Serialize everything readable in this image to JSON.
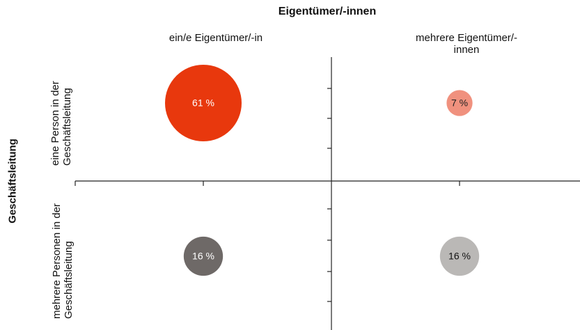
{
  "chart_data": {
    "type": "bubble-matrix",
    "title": "Eigentümer/-innen",
    "y_title": "Geschäftsleitung",
    "x_categories": [
      "ein/e Eigentümer/-in",
      "mehrere Eigentümer/-innen"
    ],
    "y_categories": [
      "eine Person in der Geschäftsleitung",
      "mehrere Personen in der Geschäftsleitung"
    ],
    "values": [
      [
        61,
        7
      ],
      [
        16,
        16
      ]
    ],
    "value_labels": [
      [
        "61 %",
        "7 %"
      ],
      [
        "16 %",
        "16 %"
      ]
    ],
    "colors": [
      [
        "#e8380d",
        "#f0917e"
      ],
      [
        "#6e6967",
        "#bab8b6"
      ]
    ],
    "label_colors": [
      [
        "#ffffff",
        "#222222"
      ],
      [
        "#ffffff",
        "#111111"
      ]
    ]
  }
}
